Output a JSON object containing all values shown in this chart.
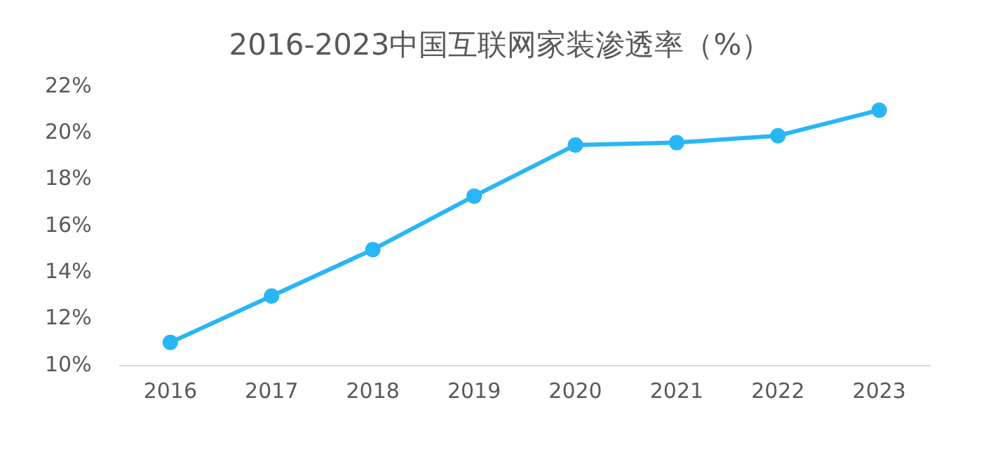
{
  "chart_data": {
    "type": "line",
    "title": "2016-2023中国互联网家装渗透率（%）",
    "categories": [
      "2016",
      "2017",
      "2018",
      "2019",
      "2020",
      "2021",
      "2022",
      "2023"
    ],
    "series": [
      {
        "color": "#29b6f6",
        "values": [
          11,
          13,
          15,
          17.3,
          19.5,
          19.6,
          19.9,
          21
        ]
      }
    ],
    "ylim": [
      10,
      22
    ],
    "yticks": [
      {
        "value": 10,
        "label": "10%"
      },
      {
        "value": 12,
        "label": "12%"
      },
      {
        "value": 14,
        "label": "14%"
      },
      {
        "value": 16,
        "label": "16%"
      },
      {
        "value": 18,
        "label": "18%"
      },
      {
        "value": 20,
        "label": "20%"
      },
      {
        "value": 22,
        "label": "22%"
      }
    ],
    "grid": false,
    "legend": false,
    "marker": "circle",
    "line_style": "solid"
  }
}
